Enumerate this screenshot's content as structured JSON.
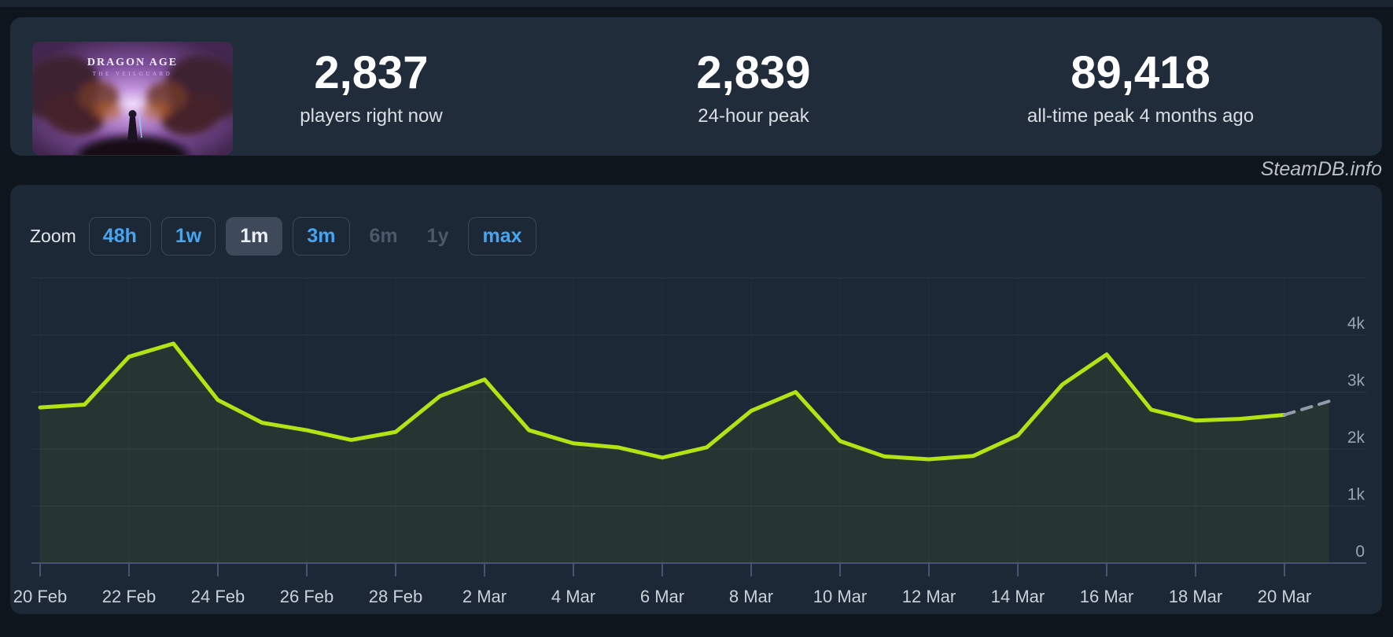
{
  "header": {
    "game_title": "DRAGON AGE",
    "game_subtitle": "THE VEILGUARD",
    "stats": [
      {
        "value": "2,837",
        "label": "players right now"
      },
      {
        "value": "2,839",
        "label": "24-hour peak"
      },
      {
        "value": "89,418",
        "label": "all-time peak 4 months ago"
      }
    ]
  },
  "watermark": "SteamDB.info",
  "toolbar": {
    "zoom_label": "Zoom",
    "buttons": [
      {
        "label": "48h",
        "state": "normal"
      },
      {
        "label": "1w",
        "state": "normal"
      },
      {
        "label": "1m",
        "state": "active"
      },
      {
        "label": "3m",
        "state": "normal"
      },
      {
        "label": "6m",
        "state": "disabled"
      },
      {
        "label": "1y",
        "state": "disabled"
      },
      {
        "label": "max",
        "state": "normal"
      }
    ]
  },
  "colors": {
    "accent_blue": "#44a6f3",
    "line_green": "#b3e312",
    "projection_gray": "#929ca8",
    "area_fill": "rgba(179,227,18,0.07)",
    "grid_line": "#2b3643",
    "grid_line_vertical": "#27313f",
    "axis_line": "#47546f",
    "panel_bg": "#1c2835",
    "header_bg": "#212c3a",
    "page_bg": "#0e151d"
  },
  "chart_data": {
    "type": "line",
    "title": "",
    "xlabel": "",
    "ylabel": "",
    "legend": "none",
    "grid": true,
    "ylim": [
      0,
      5000
    ],
    "x": [
      "20 Feb",
      "21 Feb",
      "22 Feb",
      "23 Feb",
      "24 Feb",
      "25 Feb",
      "26 Feb",
      "27 Feb",
      "28 Feb",
      "1 Mar",
      "2 Mar",
      "3 Mar",
      "4 Mar",
      "5 Mar",
      "6 Mar",
      "7 Mar",
      "8 Mar",
      "9 Mar",
      "10 Mar",
      "11 Mar",
      "12 Mar",
      "13 Mar",
      "14 Mar",
      "15 Mar",
      "16 Mar",
      "17 Mar",
      "18 Mar",
      "19 Mar",
      "20 Mar"
    ],
    "series": [
      {
        "name": "Concurrent players",
        "values": [
          2730,
          2780,
          3620,
          3850,
          2860,
          2460,
          2330,
          2160,
          2300,
          2930,
          3220,
          2330,
          2100,
          2030,
          1850,
          2030,
          2670,
          3000,
          2140,
          1870,
          1820,
          1880,
          2240,
          3130,
          3660,
          2690,
          2500,
          2530,
          2600
        ]
      }
    ],
    "projection": {
      "label": "now",
      "value": 2837,
      "style": "dashed"
    },
    "y_ticks": [
      {
        "value": 0,
        "label": "0"
      },
      {
        "value": 1000,
        "label": "1k"
      },
      {
        "value": 2000,
        "label": "2k"
      },
      {
        "value": 3000,
        "label": "3k"
      },
      {
        "value": 4000,
        "label": "4k"
      },
      {
        "value": 5000,
        "label": ""
      }
    ],
    "x_tick_every": 2
  }
}
